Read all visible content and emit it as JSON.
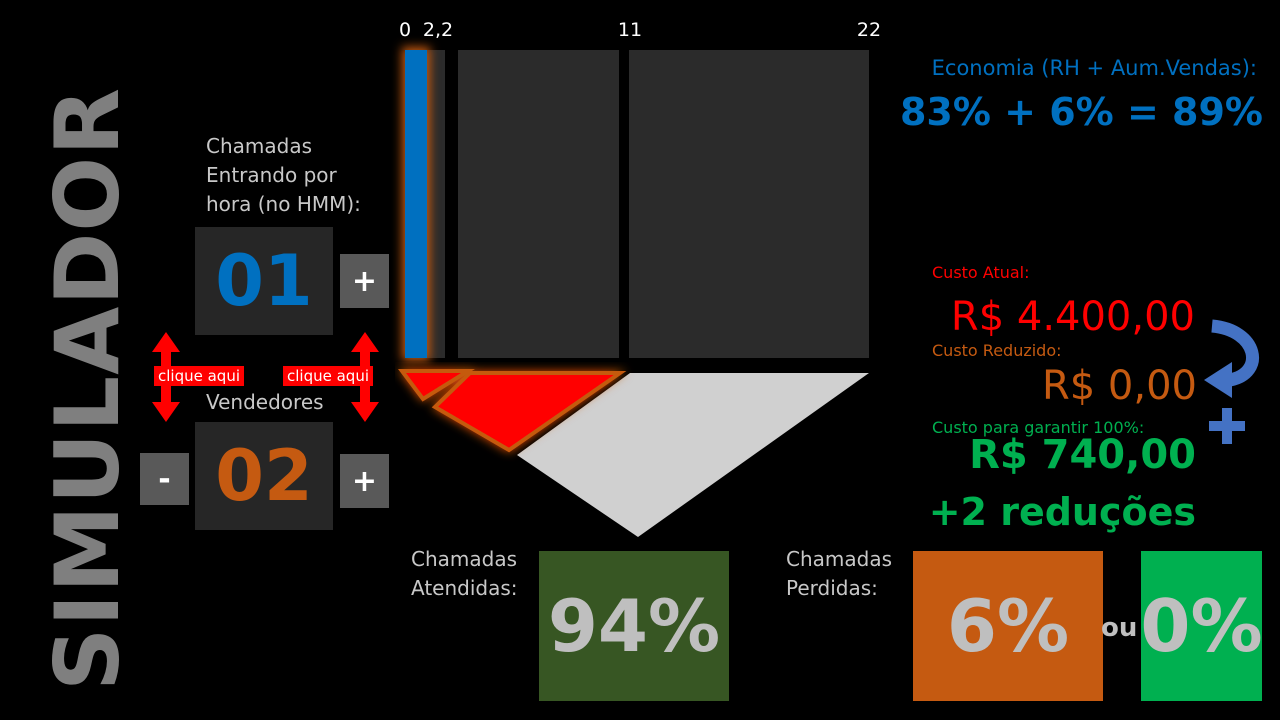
{
  "title": "SIMULADOR",
  "calls": {
    "label_line1": "Chamadas",
    "label_line2": "Entrando por",
    "label_line3": "hora (no HMM):",
    "value": "01",
    "plus": "+"
  },
  "hint": {
    "left": "clique aqui",
    "right": "clique aqui"
  },
  "sellers": {
    "label": "Vendedores",
    "value": "02",
    "minus": "-",
    "plus": "+"
  },
  "scale": {
    "ticks": [
      "0",
      "2,2",
      "11",
      "22"
    ]
  },
  "economy": {
    "label": "Economia (RH + Aum.Vendas):",
    "value": "83% + 6% = 89%"
  },
  "costs": {
    "current_label": "Custo Atual:",
    "current_value": "R$ 4.400,00",
    "reduced_label": "Custo Reduzido:",
    "reduced_value": "R$ 0,00",
    "guarantee_label": "Custo para garantir 100%:",
    "guarantee_value": "R$ 740,00",
    "reductions": "+2 reduções"
  },
  "answered": {
    "label_line1": "Chamadas",
    "label_line2": "Atendidas:",
    "value": "94%"
  },
  "lost": {
    "label_line1": "Chamadas",
    "label_line2": "Perdidas:",
    "value": "6%",
    "or": "ou",
    "alt_value": "0%"
  },
  "colors": {
    "blue": "#0070c0",
    "orange": "#c55a11",
    "red": "#ff0000",
    "green": "#00b050",
    "dark_green": "#375623",
    "grey_box": "#262626"
  }
}
